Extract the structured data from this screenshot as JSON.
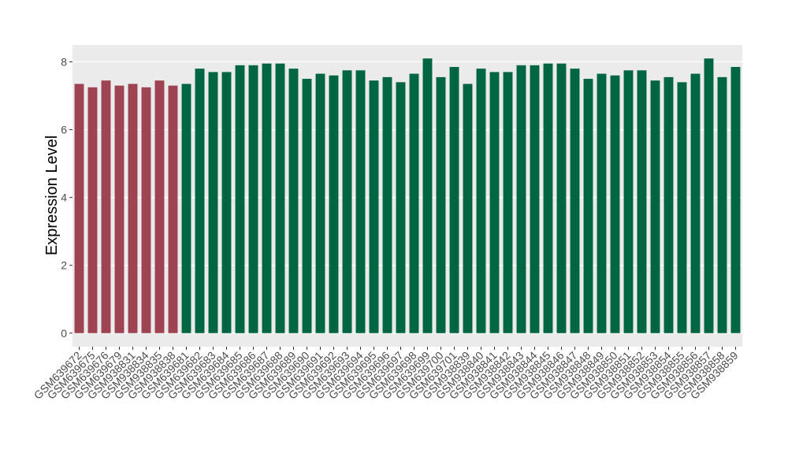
{
  "chart_data": {
    "type": "bar",
    "y_label": "Expression Level",
    "categories": [
      "GSM639672",
      "GSM639675",
      "GSM639676",
      "GSM639679",
      "GSM938831",
      "GSM938834",
      "GSM938835",
      "GSM938838",
      "GSM639681",
      "GSM639682",
      "GSM639683",
      "GSM639684",
      "GSM639685",
      "GSM639686",
      "GSM639687",
      "GSM639688",
      "GSM639689",
      "GSM639690",
      "GSM639691",
      "GSM639692",
      "GSM639693",
      "GSM639694",
      "GSM639695",
      "GSM639696",
      "GSM639697",
      "GSM639698",
      "GSM639699",
      "GSM639700",
      "GSM639701",
      "GSM938839",
      "GSM938840",
      "GSM938841",
      "GSM938842",
      "GSM938843",
      "GSM938844",
      "GSM938845",
      "GSM938846",
      "GSM938847",
      "GSM938848",
      "GSM938849",
      "GSM938850",
      "GSM938851",
      "GSM938852",
      "GSM938853",
      "GSM938854",
      "GSM938855",
      "GSM938856",
      "GSM938857",
      "GSM938858",
      "GSM938859"
    ],
    "values": [
      7.35,
      7.25,
      7.45,
      7.3,
      7.35,
      7.25,
      7.45,
      7.3,
      7.35,
      7.8,
      7.7,
      7.7,
      7.9,
      7.9,
      7.95,
      7.95,
      7.8,
      7.5,
      7.65,
      7.6,
      7.75,
      7.75,
      7.45,
      7.55,
      7.4,
      7.65,
      8.1,
      7.55,
      7.85,
      7.35,
      7.8,
      7.7,
      7.7,
      7.9,
      7.9,
      7.95,
      7.95,
      7.8,
      7.5,
      7.65,
      7.6,
      7.75,
      7.75,
      7.45,
      7.55,
      7.4,
      7.65,
      8.1,
      7.55,
      7.85
    ],
    "colors": [
      "#9e4352",
      "#9e4352",
      "#9e4352",
      "#9e4352",
      "#9e4352",
      "#9e4352",
      "#9e4352",
      "#9e4352",
      "#006641",
      "#006641",
      "#006641",
      "#006641",
      "#006641",
      "#006641",
      "#006641",
      "#006641",
      "#006641",
      "#006641",
      "#006641",
      "#006641",
      "#006641",
      "#006641",
      "#006641",
      "#006641",
      "#006641",
      "#006641",
      "#006641",
      "#006641",
      "#006641",
      "#006641",
      "#006641",
      "#006641",
      "#006641",
      "#006641",
      "#006641",
      "#006641",
      "#006641",
      "#006641",
      "#006641",
      "#006641",
      "#006641",
      "#006641",
      "#006641",
      "#006641",
      "#006641",
      "#006641",
      "#006641",
      "#006641",
      "#006641",
      "#006641"
    ],
    "ylim": [
      -0.4,
      8.5
    ],
    "yticks": [
      0,
      2,
      4,
      6,
      8
    ],
    "grid": true
  }
}
